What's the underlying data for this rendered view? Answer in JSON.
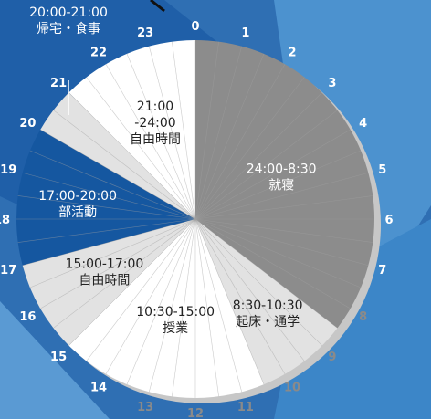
{
  "chart_data": {
    "type": "pie",
    "title": "",
    "hour_ticks": [
      "0",
      "1",
      "2",
      "3",
      "4",
      "5",
      "6",
      "7",
      "8",
      "9",
      "10",
      "11",
      "12",
      "13",
      "14",
      "15",
      "16",
      "17",
      "18",
      "19",
      "20",
      "21",
      "22",
      "23"
    ],
    "segments": [
      {
        "start": 0,
        "end": 8.5,
        "time": "24:00-8:30",
        "activity": "就寝",
        "color": "#8c8c8c",
        "text_color": "#ffffff"
      },
      {
        "start": 8.5,
        "end": 10.5,
        "time": "8:30-10:30",
        "activity": "起床・通学",
        "color": "#e2e2e2",
        "text_color": "#222222"
      },
      {
        "start": 10.5,
        "end": 15,
        "time": "10:30-15:00",
        "activity": "授業",
        "color": "#ffffff",
        "text_color": "#222222"
      },
      {
        "start": 15,
        "end": 17,
        "time": "15:00-17:00",
        "activity": "自由時間",
        "color": "#e2e2e2",
        "text_color": "#222222"
      },
      {
        "start": 17,
        "end": 20,
        "time": "17:00-20:00",
        "activity": "部活動",
        "color": "#1557a0",
        "text_color": "#ffffff"
      },
      {
        "start": 20,
        "end": 21,
        "time": "20:00-21:00",
        "activity": "帰宅・食事",
        "color": "#e2e2e2",
        "text_color": "#ffffff"
      },
      {
        "start": 21,
        "end": 24,
        "time": "21:00-24:00",
        "activity": "自由時間",
        "color": "#ffffff",
        "text_color": "#222222"
      }
    ]
  }
}
